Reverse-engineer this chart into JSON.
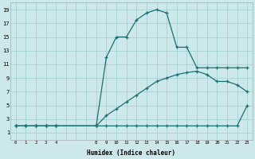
{
  "bg_color": "#cce8ea",
  "grid_color": "#9ecdd0",
  "line_color": "#1a7070",
  "xlabel": "Humidex (Indice chaleur)",
  "xtick_labels": [
    "0",
    "1",
    "2",
    "3",
    "4",
    "",
    "",
    "",
    "8",
    "9",
    "10",
    "11",
    "12",
    "13",
    "14",
    "15",
    "16",
    "17",
    "18",
    "19",
    "20",
    "21",
    "22",
    "23"
  ],
  "ytick_vals": [
    1,
    3,
    5,
    7,
    9,
    11,
    13,
    15,
    17,
    19
  ],
  "xlim": [
    -0.5,
    23.5
  ],
  "ylim": [
    0.0,
    20.0
  ],
  "curve1_x": [
    0,
    1,
    2,
    3,
    4,
    8,
    9,
    10,
    11,
    12,
    13,
    14,
    15,
    16,
    17,
    18,
    19,
    20,
    21,
    22,
    23
  ],
  "curve1_y": [
    2,
    2,
    2,
    2,
    2,
    2,
    2,
    2,
    2,
    2,
    2,
    2,
    2,
    2,
    2,
    2,
    2,
    2,
    2,
    2,
    5
  ],
  "curve2_x": [
    0,
    1,
    2,
    3,
    4,
    8,
    9,
    10,
    11,
    12,
    13,
    14,
    15,
    16,
    17,
    18,
    19,
    20,
    21,
    22,
    23
  ],
  "curve2_y": [
    2,
    2,
    2,
    2,
    2,
    2,
    3.5,
    4.5,
    5.5,
    6.5,
    7.5,
    8.5,
    9.0,
    9.5,
    9.8,
    10.0,
    9.5,
    8.5,
    8.5,
    8.0,
    7.0
  ],
  "curve3_x": [
    0,
    1,
    2,
    3,
    4,
    8,
    9,
    10,
    11,
    12,
    13,
    14,
    15,
    16,
    17,
    18,
    19,
    20,
    21,
    22,
    23
  ],
  "curve3_y": [
    2,
    2,
    2,
    2,
    2,
    2,
    12,
    15,
    15,
    17.5,
    18.5,
    19,
    18.5,
    13.5,
    13.5,
    10.5,
    10.5,
    10.5,
    10.5,
    10.5,
    10.5
  ]
}
